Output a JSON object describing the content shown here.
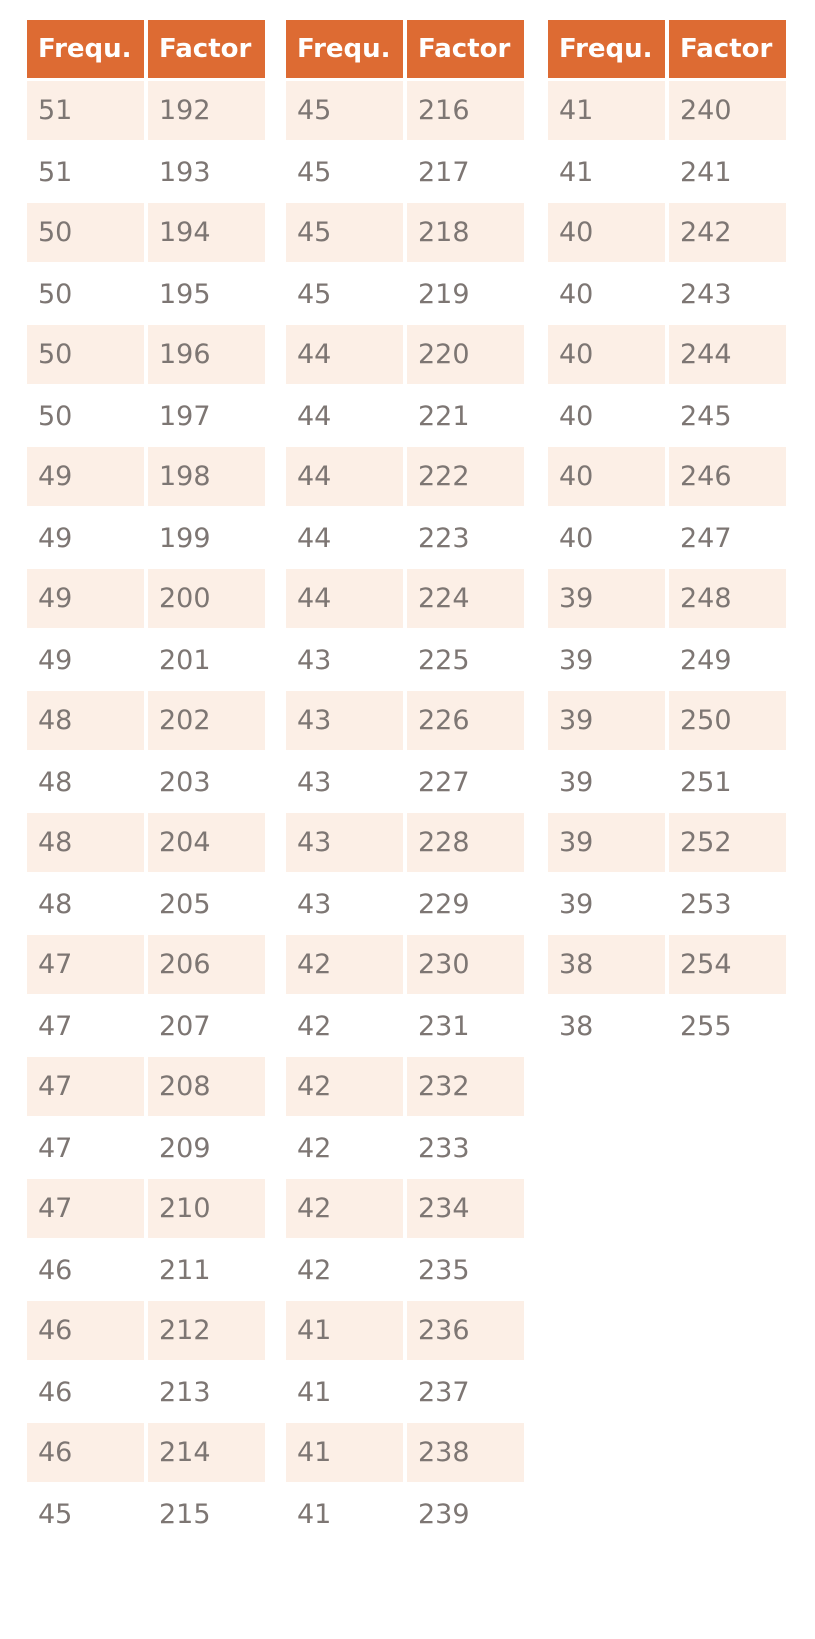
{
  "headers": {
    "frequency": "Frequ.",
    "factor": "Factor"
  },
  "colors": {
    "header_bg": "#dd6b33",
    "stripe_bg": "#fcefe6",
    "text": "#7d7673"
  },
  "tables": [
    {
      "rows": [
        [
          "51",
          "192"
        ],
        [
          "51",
          "193"
        ],
        [
          "50",
          "194"
        ],
        [
          "50",
          "195"
        ],
        [
          "50",
          "196"
        ],
        [
          "50",
          "197"
        ],
        [
          "49",
          "198"
        ],
        [
          "49",
          "199"
        ],
        [
          "49",
          "200"
        ],
        [
          "49",
          "201"
        ],
        [
          "48",
          "202"
        ],
        [
          "48",
          "203"
        ],
        [
          "48",
          "204"
        ],
        [
          "48",
          "205"
        ],
        [
          "47",
          "206"
        ],
        [
          "47",
          "207"
        ],
        [
          "47",
          "208"
        ],
        [
          "47",
          "209"
        ],
        [
          "47",
          "210"
        ],
        [
          "46",
          "211"
        ],
        [
          "46",
          "212"
        ],
        [
          "46",
          "213"
        ],
        [
          "46",
          "214"
        ],
        [
          "45",
          "215"
        ]
      ]
    },
    {
      "rows": [
        [
          "45",
          "216"
        ],
        [
          "45",
          "217"
        ],
        [
          "45",
          "218"
        ],
        [
          "45",
          "219"
        ],
        [
          "44",
          "220"
        ],
        [
          "44",
          "221"
        ],
        [
          "44",
          "222"
        ],
        [
          "44",
          "223"
        ],
        [
          "44",
          "224"
        ],
        [
          "43",
          "225"
        ],
        [
          "43",
          "226"
        ],
        [
          "43",
          "227"
        ],
        [
          "43",
          "228"
        ],
        [
          "43",
          "229"
        ],
        [
          "42",
          "230"
        ],
        [
          "42",
          "231"
        ],
        [
          "42",
          "232"
        ],
        [
          "42",
          "233"
        ],
        [
          "42",
          "234"
        ],
        [
          "42",
          "235"
        ],
        [
          "41",
          "236"
        ],
        [
          "41",
          "237"
        ],
        [
          "41",
          "238"
        ],
        [
          "41",
          "239"
        ]
      ]
    },
    {
      "rows": [
        [
          "41",
          "240"
        ],
        [
          "41",
          "241"
        ],
        [
          "40",
          "242"
        ],
        [
          "40",
          "243"
        ],
        [
          "40",
          "244"
        ],
        [
          "40",
          "245"
        ],
        [
          "40",
          "246"
        ],
        [
          "40",
          "247"
        ],
        [
          "39",
          "248"
        ],
        [
          "39",
          "249"
        ],
        [
          "39",
          "250"
        ],
        [
          "39",
          "251"
        ],
        [
          "39",
          "252"
        ],
        [
          "39",
          "253"
        ],
        [
          "38",
          "254"
        ],
        [
          "38",
          "255"
        ]
      ]
    }
  ]
}
